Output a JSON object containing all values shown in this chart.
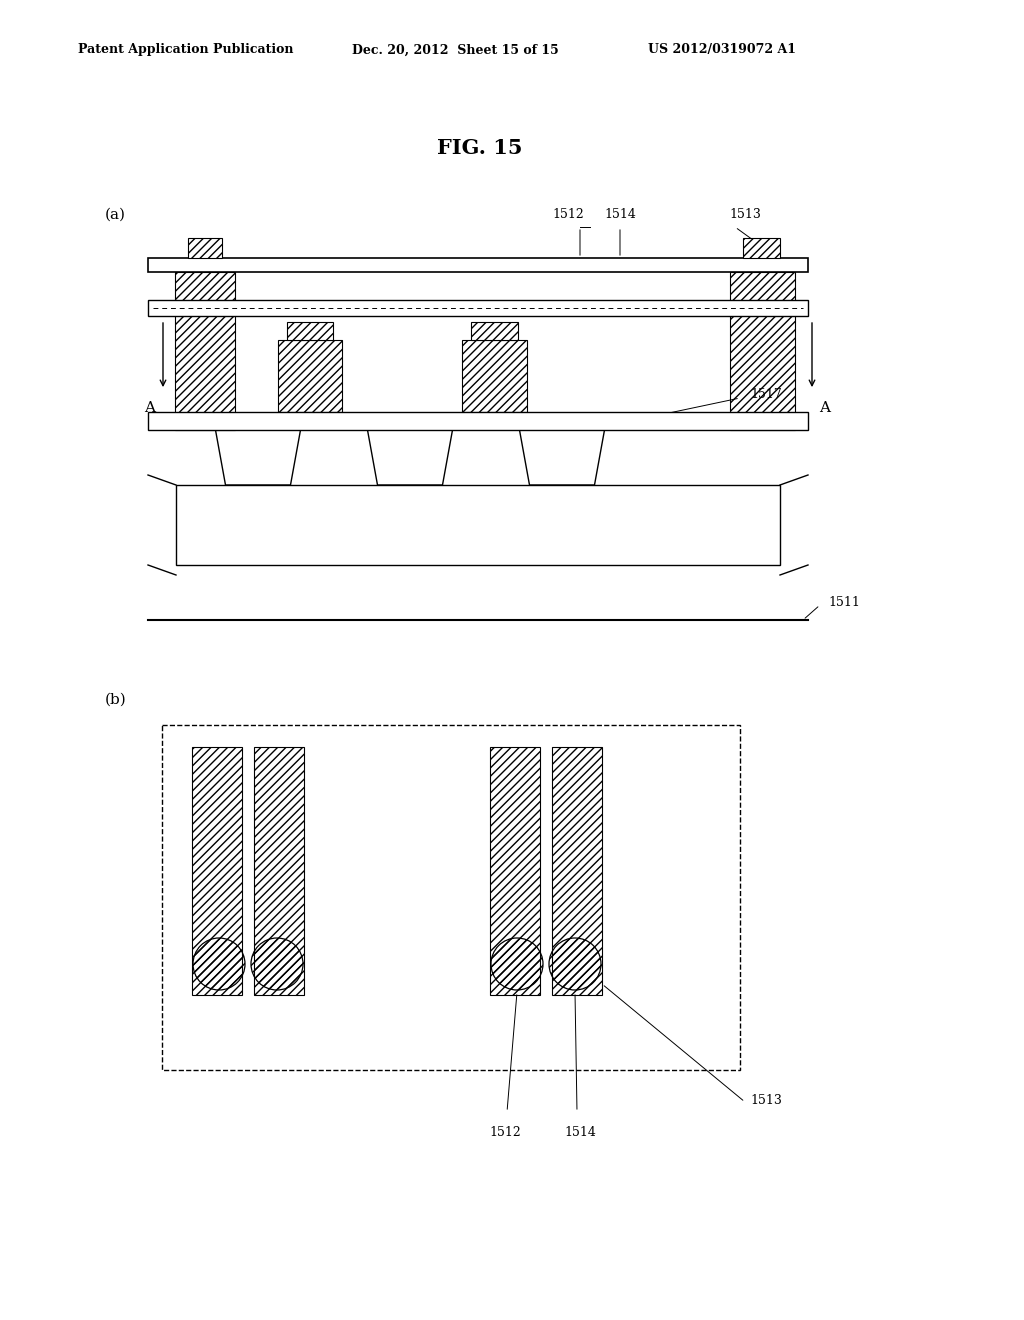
{
  "bg_color": "#ffffff",
  "title": "FIG. 15",
  "header_left": "Patent Application Publication",
  "header_mid": "Dec. 20, 2012  Sheet 15 of 15",
  "header_right": "US 2012/0319072 A1",
  "fig_width": 10.24,
  "fig_height": 13.2
}
